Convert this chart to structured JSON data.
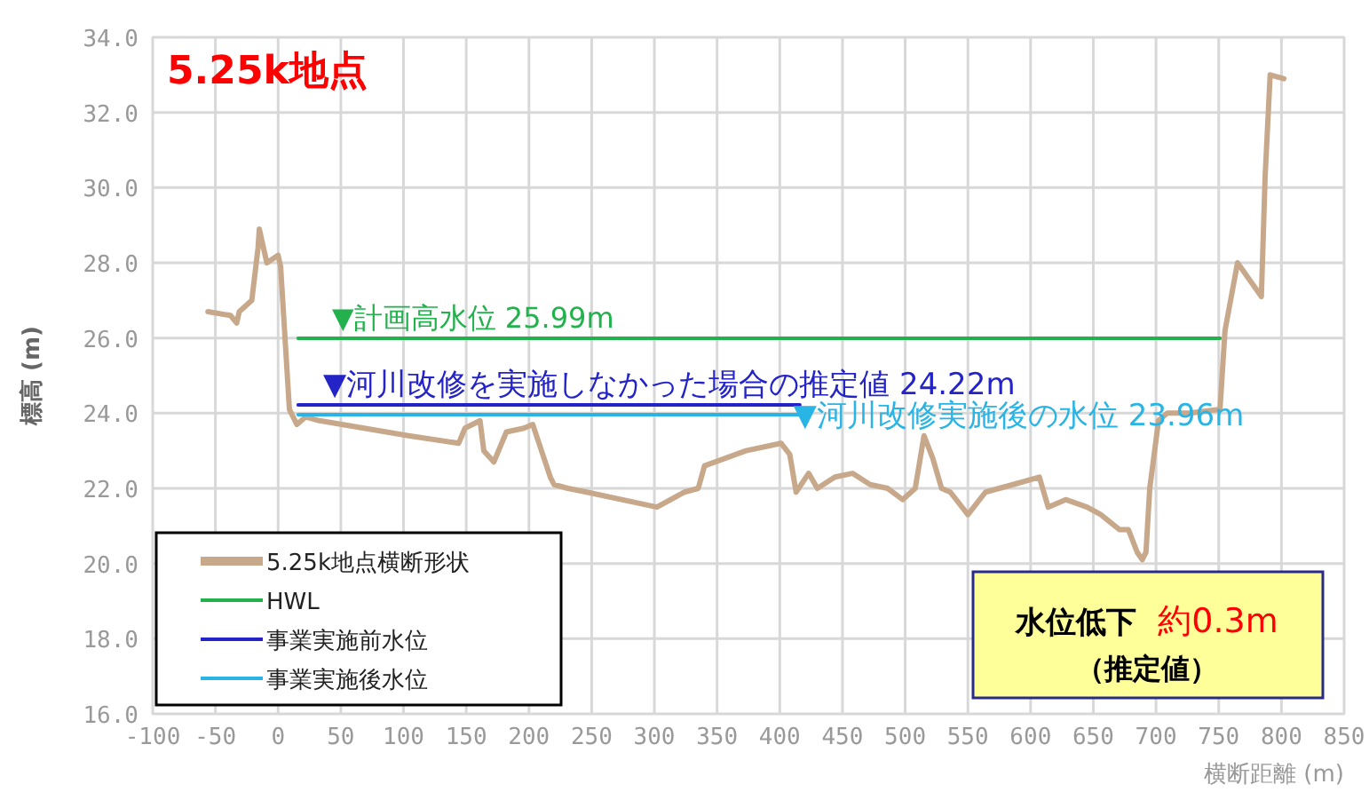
{
  "chart_data": {
    "type": "line",
    "title": "5.25k地点",
    "xlabel": "横断距離 (m)",
    "ylabel": "標高 (m)",
    "xlim": [
      -100,
      850
    ],
    "ylim": [
      16,
      34
    ],
    "xticks": [
      -100,
      -50,
      0,
      50,
      100,
      150,
      200,
      250,
      300,
      350,
      400,
      450,
      500,
      550,
      600,
      650,
      700,
      750,
      800,
      850
    ],
    "yticks": [
      {
        "value": 16,
        "label": "16.0"
      },
      {
        "value": 18,
        "label": "18.0"
      },
      {
        "value": 20,
        "label": "20.0"
      },
      {
        "value": 22,
        "label": "22.0"
      },
      {
        "value": 24,
        "label": "24.0"
      },
      {
        "value": 26,
        "label": "26.0"
      },
      {
        "value": 28,
        "label": "28.0"
      },
      {
        "value": 30,
        "label": "30.0"
      },
      {
        "value": 32,
        "label": "32.0"
      },
      {
        "value": 34,
        "label": "34.0"
      }
    ],
    "grid": true,
    "legend": "bottom left",
    "marker": "none",
    "line_style": "solid",
    "series": [
      {
        "name": "5.25k地点横断形状",
        "color": "#c8a88a",
        "x": [
          -56,
          -38,
          -33,
          -31,
          -21,
          -16,
          -15,
          -9,
          0,
          2,
          9,
          15,
          22,
          33,
          104,
          144,
          149,
          161,
          164,
          172,
          182,
          196,
          203,
          210,
          217,
          220,
          231,
          246,
          302,
          324,
          335,
          340,
          373,
          401,
          408,
          413,
          423,
          430,
          444,
          458,
          472,
          486,
          498,
          508,
          515,
          522,
          529,
          536,
          550,
          564,
          586,
          607,
          614,
          628,
          645,
          656,
          671,
          678,
          685,
          689,
          692,
          695,
          702,
          709,
          727,
          751,
          755,
          765,
          784,
          787,
          791,
          802
        ],
        "values": [
          26.7,
          26.6,
          26.4,
          26.7,
          27.0,
          28.4,
          28.9,
          28.0,
          28.2,
          27.9,
          24.1,
          23.7,
          23.9,
          23.8,
          23.4,
          23.2,
          23.6,
          23.8,
          23.0,
          22.7,
          23.5,
          23.6,
          23.7,
          23.0,
          22.3,
          22.1,
          22.0,
          21.9,
          21.5,
          21.9,
          22.0,
          22.6,
          23.0,
          23.2,
          22.9,
          21.9,
          22.4,
          22.0,
          22.3,
          22.4,
          22.1,
          22.0,
          21.7,
          22.0,
          23.4,
          22.8,
          22.0,
          21.9,
          21.3,
          21.9,
          22.1,
          22.3,
          21.5,
          21.7,
          21.5,
          21.3,
          20.9,
          20.9,
          20.3,
          20.1,
          20.3,
          22.0,
          23.8,
          24.0,
          24.0,
          24.1,
          26.2,
          28.0,
          27.1,
          30.3,
          33.0,
          32.9
        ]
      },
      {
        "name": "HWL",
        "color": "#22b14c",
        "x": [
          16,
          751
        ],
        "values": [
          25.99,
          25.99
        ]
      },
      {
        "name": "事業実施前水位",
        "color": "#2323c8",
        "x": [
          16,
          416
        ],
        "values": [
          24.22,
          24.22
        ]
      },
      {
        "name": "事業実施後水位",
        "color": "#29b4e6",
        "x": [
          16,
          416
        ],
        "values": [
          23.96,
          23.96
        ]
      }
    ],
    "annotations": [
      {
        "text": "▼計画高水位 25.99m",
        "x": 43,
        "y": 25.99
      },
      {
        "text": "▼河川改修を実施しなかった場合の推定値 24.22m",
        "x": 36,
        "y": 24.22
      },
      {
        "text": "▼河川改修実施後の水位 23.96m",
        "x": 411,
        "y": 23.96
      },
      "水位低下",
      "約0.3m",
      "（推定値）"
    ]
  }
}
